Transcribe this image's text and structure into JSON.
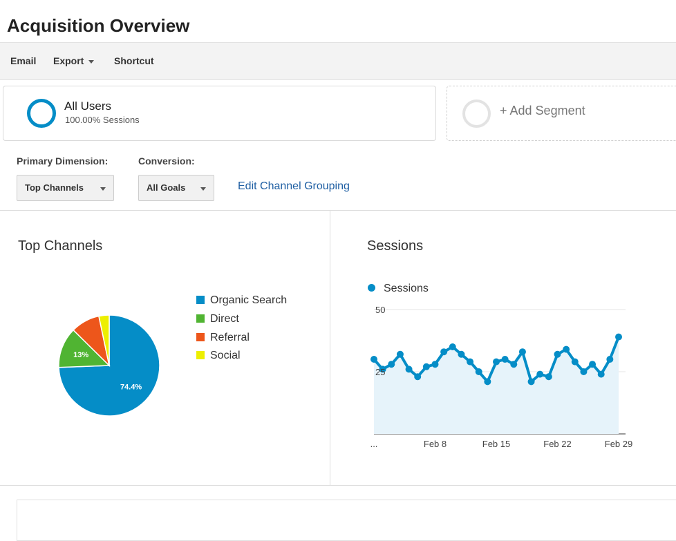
{
  "page": {
    "title": "Acquisition Overview"
  },
  "toolbar": {
    "email": "Email",
    "export": "Export",
    "shortcut": "Shortcut"
  },
  "segments": {
    "active": {
      "name": "All Users",
      "sub": "100.00% Sessions",
      "color": "#058dc7"
    },
    "add_label": "+ Add Segment"
  },
  "controls": {
    "primary_dimension_label": "Primary Dimension:",
    "primary_dimension_value": "Top Channels",
    "conversion_label": "Conversion:",
    "conversion_value": "All Goals",
    "edit_link": "Edit Channel Grouping"
  },
  "top_channels": {
    "title": "Top Channels",
    "chart_data": {
      "type": "pie",
      "slices": [
        {
          "name": "Organic Search",
          "value": 74.4,
          "color": "#058dc7",
          "label": "74.4%"
        },
        {
          "name": "Direct",
          "value": 13,
          "color": "#50b432",
          "label": "13%"
        },
        {
          "name": "Referral",
          "value": 9.3,
          "color": "#ed561b",
          "label": ""
        },
        {
          "name": "Social",
          "value": 3.3,
          "color": "#edef00",
          "label": ""
        }
      ]
    }
  },
  "sessions": {
    "title": "Sessions",
    "legend": "Sessions",
    "chart_data": {
      "type": "area",
      "series": [
        {
          "name": "Sessions",
          "color": "#058dc7",
          "values": [
            30,
            26,
            28,
            32,
            26,
            23,
            27,
            28,
            33,
            35,
            32,
            29,
            25,
            21,
            29,
            30,
            28,
            33,
            21,
            24,
            23,
            32,
            34,
            29,
            25,
            28,
            24,
            30,
            39
          ]
        }
      ],
      "ylim": [
        0,
        50
      ],
      "yticks": [
        25,
        50
      ],
      "xtick_labels": [
        "...",
        "Feb 8",
        "Feb 15",
        "Feb 22",
        "Feb 29"
      ],
      "xtick_indices": [
        0,
        7,
        14,
        21,
        28
      ],
      "grid": true
    }
  }
}
